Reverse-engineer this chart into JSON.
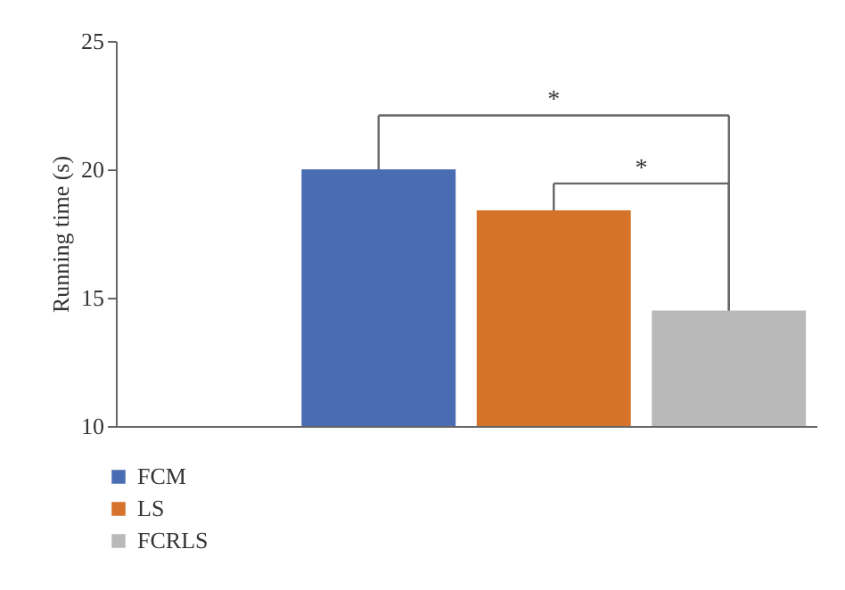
{
  "chart_data": {
    "type": "bar",
    "ylabel": "Running time (s)",
    "categories": [
      null,
      null,
      null,
      null
    ],
    "series": [
      {
        "name": "FCM",
        "color": "#4a6cb3",
        "values": [
          null,
          20.0,
          null,
          null
        ]
      },
      {
        "name": "LS",
        "color": "#d5732a",
        "values": [
          null,
          null,
          18.4,
          null
        ]
      },
      {
        "name": "FCRLS",
        "color": "#b9b9b9",
        "values": [
          null,
          null,
          null,
          14.5
        ]
      }
    ],
    "ylim": [
      10,
      25
    ],
    "yticks": [
      10,
      15,
      20,
      25
    ],
    "grid": false,
    "legend": "bottom left",
    "annotations": [
      "*",
      "*"
    ]
  }
}
